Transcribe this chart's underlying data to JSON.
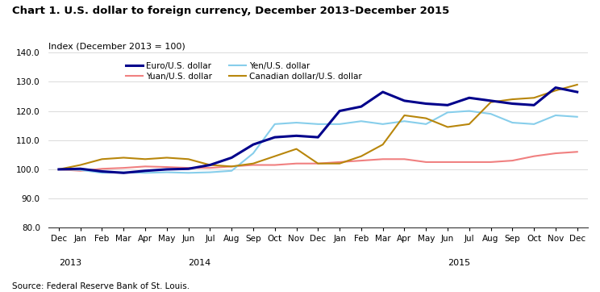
{
  "title": "Chart 1. U.S. dollar to foreign currency, December 2013–December 2015",
  "ylabel": "Index (December 2013 = 100)",
  "source": "Source: Federal Reserve Bank of St. Louis.",
  "ylim": [
    80.0,
    140.0
  ],
  "yticks": [
    80.0,
    90.0,
    100.0,
    110.0,
    120.0,
    130.0,
    140.0
  ],
  "x_labels": [
    "Dec",
    "Jan",
    "Feb",
    "Mar",
    "Apr",
    "May",
    "Jun",
    "Jul",
    "Aug",
    "Sep",
    "Oct",
    "Nov",
    "Dec",
    "Jan",
    "Feb",
    "Mar",
    "Apr",
    "May",
    "Jun",
    "Jul",
    "Aug",
    "Sep",
    "Oct",
    "Nov",
    "Dec"
  ],
  "euro": [
    100.0,
    100.2,
    99.3,
    98.8,
    99.5,
    100.0,
    100.2,
    101.5,
    104.0,
    108.5,
    111.0,
    111.5,
    111.0,
    120.0,
    121.5,
    126.5,
    123.5,
    122.5,
    122.0,
    124.5,
    123.5,
    122.5,
    122.0,
    128.0,
    126.5
  ],
  "yen": [
    100.0,
    99.8,
    98.8,
    99.0,
    98.8,
    99.0,
    98.8,
    99.0,
    99.5,
    105.5,
    115.5,
    116.0,
    115.5,
    115.5,
    116.5,
    115.5,
    116.5,
    115.5,
    119.5,
    120.0,
    119.0,
    116.0,
    115.5,
    118.5,
    118.0
  ],
  "yuan": [
    100.0,
    99.5,
    100.2,
    100.5,
    101.0,
    100.8,
    100.5,
    100.5,
    101.0,
    101.5,
    101.5,
    102.0,
    102.0,
    102.5,
    103.0,
    103.5,
    103.5,
    102.5,
    102.5,
    102.5,
    102.5,
    103.0,
    104.5,
    105.5,
    106.0
  ],
  "cad": [
    100.0,
    101.5,
    103.5,
    104.0,
    103.5,
    104.0,
    103.5,
    101.5,
    101.0,
    102.0,
    104.5,
    107.0,
    102.0,
    102.0,
    104.5,
    108.5,
    118.5,
    117.5,
    114.5,
    115.5,
    123.0,
    124.0,
    124.5,
    127.0,
    129.0
  ],
  "euro_color": "#00008B",
  "yen_color": "#87CEEB",
  "yuan_color": "#F08080",
  "cad_color": "#B8860B",
  "euro_lw": 2.2,
  "yen_lw": 1.5,
  "yuan_lw": 1.5,
  "cad_lw": 1.5,
  "legend_order": [
    0,
    2,
    1,
    3
  ]
}
